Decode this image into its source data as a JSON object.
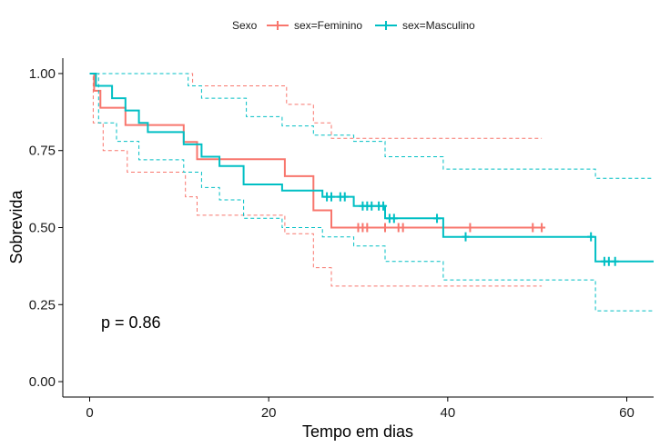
{
  "chart_data": {
    "type": "line",
    "subtype": "kaplan-meier-survival",
    "title": "",
    "xlabel": "Tempo em dias",
    "ylabel": "Sobrevida",
    "xlim": [
      -3,
      63
    ],
    "ylim": [
      -0.05,
      1.05
    ],
    "x_ticks": [
      0,
      20,
      40,
      60
    ],
    "y_ticks": [
      0.0,
      0.25,
      0.5,
      0.75,
      1.0
    ],
    "x_tick_labels": [
      "0",
      "20",
      "40",
      "60"
    ],
    "y_tick_labels": [
      "0.00",
      "0.25",
      "0.50",
      "0.75",
      "1.00"
    ],
    "grid": false,
    "legend": {
      "placement": "top",
      "title": "Sexo",
      "entries": [
        "sex=Feminino",
        "sex=Masculino"
      ]
    },
    "annotation": "p = 0.86",
    "series": [
      {
        "name": "sex=Feminino",
        "color": "#F8766D",
        "steps": [
          [
            0,
            1.0
          ],
          [
            0.5,
            0.944
          ],
          [
            1.2,
            0.889
          ],
          [
            4,
            0.833
          ],
          [
            10.5,
            0.778
          ],
          [
            12,
            0.722
          ],
          [
            21.8,
            0.667
          ],
          [
            25,
            0.556
          ],
          [
            27,
            0.5
          ],
          [
            50.5,
            0.5
          ]
        ],
        "upper": [
          [
            0,
            1.0
          ],
          [
            1.2,
            1.0
          ],
          [
            11.5,
            0.96
          ],
          [
            22,
            0.9
          ],
          [
            25,
            0.84
          ],
          [
            27,
            0.79
          ],
          [
            50.5,
            0.79
          ]
        ],
        "lower": [
          [
            0,
            1.0
          ],
          [
            0.4,
            0.84
          ],
          [
            1.5,
            0.75
          ],
          [
            4.2,
            0.68
          ],
          [
            10.7,
            0.6
          ],
          [
            12,
            0.54
          ],
          [
            21.8,
            0.48
          ],
          [
            25,
            0.37
          ],
          [
            27,
            0.31
          ],
          [
            50.5,
            0.31
          ]
        ],
        "censored": [
          [
            30,
            0.5
          ],
          [
            30.5,
            0.5
          ],
          [
            31,
            0.5
          ],
          [
            33,
            0.5
          ],
          [
            34.5,
            0.5
          ],
          [
            35,
            0.5
          ],
          [
            42.5,
            0.5
          ],
          [
            49.5,
            0.5
          ],
          [
            50.5,
            0.5
          ]
        ]
      },
      {
        "name": "sex=Masculino",
        "color": "#00BFC4",
        "steps": [
          [
            0,
            1.0
          ],
          [
            0.7,
            0.96
          ],
          [
            2.5,
            0.92
          ],
          [
            4,
            0.88
          ],
          [
            5.5,
            0.84
          ],
          [
            6.5,
            0.81
          ],
          [
            10.5,
            0.77
          ],
          [
            12.5,
            0.73
          ],
          [
            14.5,
            0.7
          ],
          [
            17.2,
            0.64
          ],
          [
            21.5,
            0.62
          ],
          [
            26,
            0.6
          ],
          [
            29.5,
            0.57
          ],
          [
            33,
            0.53
          ],
          [
            39.5,
            0.47
          ],
          [
            56.5,
            0.39
          ],
          [
            63,
            0.39
          ]
        ],
        "upper": [
          [
            0,
            1.0
          ],
          [
            5.5,
            1.0
          ],
          [
            11,
            0.96
          ],
          [
            12.5,
            0.92
          ],
          [
            17.5,
            0.86
          ],
          [
            21.5,
            0.83
          ],
          [
            25,
            0.8
          ],
          [
            29.5,
            0.78
          ],
          [
            33,
            0.73
          ],
          [
            39.5,
            0.69
          ],
          [
            56.5,
            0.66
          ],
          [
            63,
            0.66
          ]
        ],
        "lower": [
          [
            0,
            1.0
          ],
          [
            1,
            0.84
          ],
          [
            3,
            0.78
          ],
          [
            5.5,
            0.72
          ],
          [
            10.5,
            0.68
          ],
          [
            12.5,
            0.63
          ],
          [
            14.5,
            0.59
          ],
          [
            17.2,
            0.53
          ],
          [
            21.5,
            0.5
          ],
          [
            26,
            0.47
          ],
          [
            29.5,
            0.44
          ],
          [
            33,
            0.39
          ],
          [
            39.5,
            0.33
          ],
          [
            56.5,
            0.23
          ],
          [
            63,
            0.23
          ]
        ],
        "censored": [
          [
            26.5,
            0.6
          ],
          [
            27,
            0.6
          ],
          [
            28,
            0.6
          ],
          [
            28.5,
            0.6
          ],
          [
            30.5,
            0.57
          ],
          [
            31,
            0.57
          ],
          [
            31.5,
            0.57
          ],
          [
            32.3,
            0.57
          ],
          [
            32.8,
            0.57
          ],
          [
            33.5,
            0.53
          ],
          [
            34,
            0.53
          ],
          [
            38.8,
            0.53
          ],
          [
            42,
            0.47
          ],
          [
            56,
            0.47
          ],
          [
            57.5,
            0.39
          ],
          [
            58,
            0.39
          ],
          [
            58.7,
            0.39
          ]
        ]
      }
    ]
  }
}
